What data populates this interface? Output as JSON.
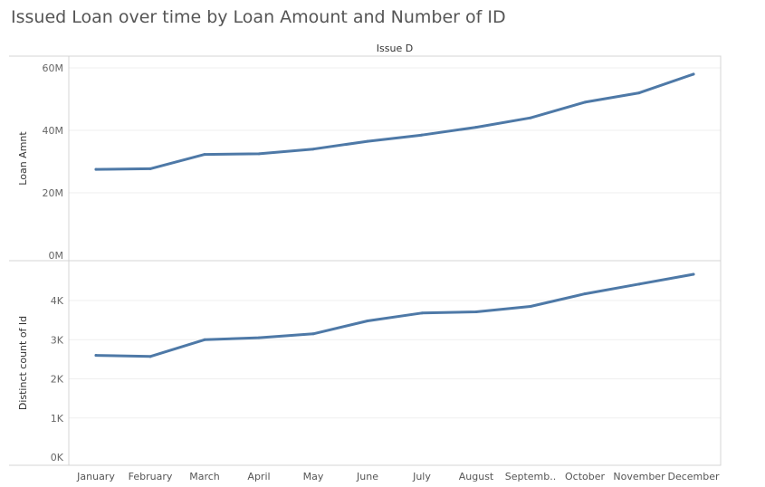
{
  "chart_data": {
    "type": "line",
    "title": "Issued Loan over time by Loan Amount and Number of ID",
    "xlabel": "Issue D",
    "categories": [
      "January",
      "February",
      "March",
      "April",
      "May",
      "June",
      "July",
      "August",
      "Septemb..",
      "October",
      "November",
      "December"
    ],
    "panels": [
      {
        "ylabel": "Loan Amnt",
        "ylim": [
          0,
          62
        ],
        "yticks": [
          0,
          20,
          40,
          60
        ],
        "ytick_labels": [
          "0M",
          "20M",
          "40M",
          "60M"
        ],
        "unit": "M",
        "values": [
          27.5,
          27.7,
          32.3,
          32.5,
          34,
          36.5,
          38.5,
          41,
          44,
          49,
          52,
          58
        ]
      },
      {
        "ylabel": "Distinct count of Id",
        "ylim": [
          0,
          4.75
        ],
        "yticks": [
          0,
          1,
          2,
          3,
          4
        ],
        "ytick_labels": [
          "0K",
          "1K",
          "2K",
          "3K",
          "4K"
        ],
        "unit": "K",
        "values": [
          2.6,
          2.57,
          3.0,
          3.05,
          3.15,
          3.48,
          3.68,
          3.71,
          3.85,
          4.17,
          4.42,
          4.67
        ]
      }
    ],
    "line_color": "#4e79a7",
    "grid": true
  }
}
